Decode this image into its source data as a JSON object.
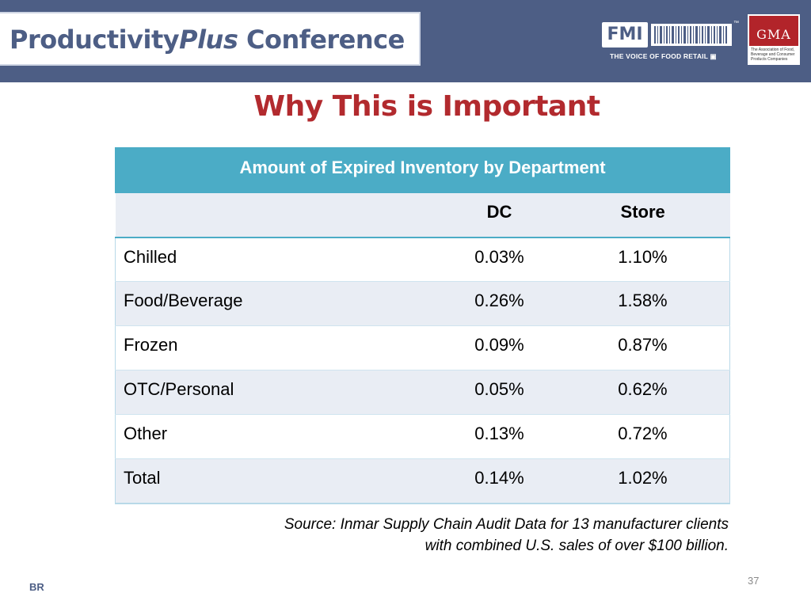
{
  "header": {
    "conference_pre": "Productivity",
    "conference_em": "Plus",
    "conference_post": " Conference",
    "fmi_name": "FMI",
    "fmi_tagline": "THE VOICE OF FOOD RETAIL",
    "fmi_tm": "™",
    "gma_name": "GMA",
    "gma_sub": "The Association of Food, Beverage and Consumer Products Companies",
    "banner_color": "#4d5e85"
  },
  "slide": {
    "title": "Why This is Important",
    "title_color": "#b22a2e"
  },
  "table": {
    "caption": "Amount of Expired Inventory by Department",
    "header_color": "#4bacc6",
    "columns": [
      "",
      "DC",
      "Store"
    ],
    "rows": [
      [
        "Chilled",
        "0.03%",
        "1.10%"
      ],
      [
        "Food/Beverage",
        "0.26%",
        "1.58%"
      ],
      [
        "Frozen",
        "0.09%",
        "0.87%"
      ],
      [
        "OTC/Personal",
        "0.05%",
        "0.62%"
      ],
      [
        "Other",
        "0.13%",
        "0.72%"
      ],
      [
        "Total",
        "0.14%",
        "1.02%"
      ]
    ]
  },
  "source": {
    "line1": "Source:  Inmar  Supply Chain Audit Data for 13 manufacturer clients",
    "line2": "with combined U.S. sales of over $100 billion."
  },
  "footer": {
    "page_number": "37",
    "initials": "BR"
  }
}
